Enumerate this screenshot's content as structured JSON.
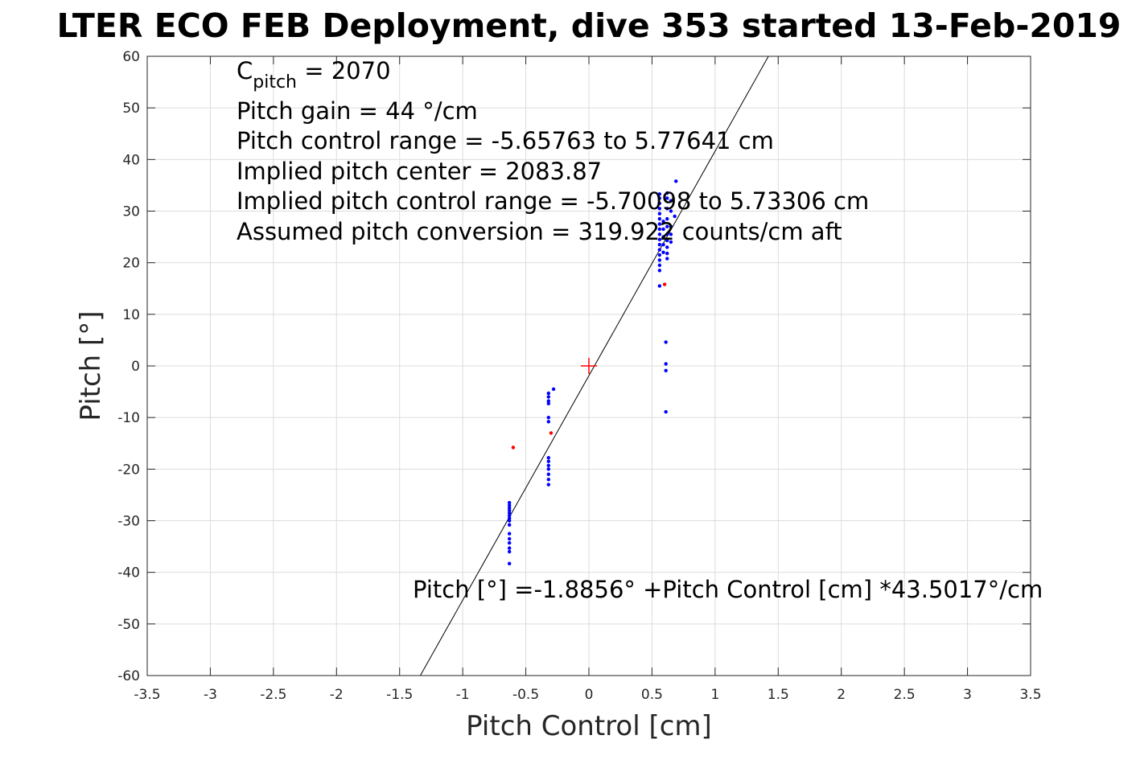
{
  "chart_data": {
    "type": "scatter",
    "title": "LTER ECO FEB Deployment, dive 353 started 13-Feb-2019",
    "xlabel": "Pitch Control [cm]",
    "ylabel": "Pitch [°]",
    "xlim": [
      -3.5,
      3.5
    ],
    "ylim": [
      -60,
      60
    ],
    "x_ticks": [
      -3.5,
      -3,
      -2.5,
      -2,
      -1.5,
      -1,
      -0.5,
      0,
      0.5,
      1,
      1.5,
      2,
      2.5,
      3,
      3.5
    ],
    "x_tick_labels": [
      "-3.5",
      "-3",
      "-2.5",
      "-2",
      "-1.5",
      "-1",
      "-0.5",
      "0",
      "0.5",
      "1",
      "1.5",
      "2",
      "2.5",
      "3",
      "3.5"
    ],
    "y_ticks": [
      -60,
      -50,
      -40,
      -30,
      -20,
      -10,
      0,
      10,
      20,
      30,
      40,
      50,
      60
    ],
    "y_tick_labels": [
      "-60",
      "-50",
      "-40",
      "-30",
      "-20",
      "-10",
      "0",
      "10",
      "20",
      "30",
      "40",
      "50",
      "60"
    ],
    "grid": true,
    "annotations": {
      "c_pitch_label": "C",
      "c_pitch_sub": "pitch",
      "c_pitch_value": " = 2070",
      "lines": [
        "Pitch gain = 44 °/cm",
        "Pitch control range = -5.65763 to 5.77641 cm",
        "Implied pitch center = 2083.87",
        "Implied pitch control range = -5.70098 to 5.73306 cm",
        "Assumed pitch conversion = 319.922 counts/cm aft"
      ],
      "fit_equation": "Pitch [°] =-1.8856° +Pitch Control [cm] *43.5017°/cm"
    },
    "fit_line": {
      "intercept": -1.8856,
      "slope": 43.5017,
      "color": "#000000"
    },
    "center_marker": {
      "x": 0,
      "y": 0,
      "color": "#ff0000"
    },
    "series": [
      {
        "color": "#0000ff",
        "points": [
          [
            -0.63,
            -26.5
          ],
          [
            -0.63,
            -27.0
          ],
          [
            -0.63,
            -27.5
          ],
          [
            -0.63,
            -28.0
          ],
          [
            -0.63,
            -28.5
          ],
          [
            -0.63,
            -29.0
          ],
          [
            -0.63,
            -29.5
          ],
          [
            -0.63,
            -30.0
          ],
          [
            -0.63,
            -30.8
          ],
          [
            -0.63,
            -32.5
          ],
          [
            -0.63,
            -33.5
          ],
          [
            -0.63,
            -34.3
          ],
          [
            -0.63,
            -35.3
          ],
          [
            -0.63,
            -36.0
          ],
          [
            -0.63,
            -38.3
          ],
          [
            -0.32,
            -5.3
          ],
          [
            -0.32,
            -6.0
          ],
          [
            -0.32,
            -6.8
          ],
          [
            -0.32,
            -7.3
          ],
          [
            -0.32,
            -10.0
          ],
          [
            -0.32,
            -10.8
          ],
          [
            -0.28,
            -4.5
          ],
          [
            -0.32,
            -17.8
          ],
          [
            -0.32,
            -18.5
          ],
          [
            -0.32,
            -19.3
          ],
          [
            -0.32,
            -20.0
          ],
          [
            -0.32,
            -21.0
          ],
          [
            -0.32,
            -22.0
          ],
          [
            -0.32,
            -23.0
          ],
          [
            0.56,
            15.5
          ],
          [
            0.56,
            18.5
          ],
          [
            0.56,
            19.5
          ],
          [
            0.56,
            20.5
          ],
          [
            0.56,
            21.5
          ],
          [
            0.56,
            22.5
          ],
          [
            0.56,
            23.5
          ],
          [
            0.56,
            24.5
          ],
          [
            0.56,
            25.5
          ],
          [
            0.56,
            26.5
          ],
          [
            0.56,
            27.5
          ],
          [
            0.56,
            28.5
          ],
          [
            0.56,
            29.5
          ],
          [
            0.56,
            30.5
          ],
          [
            0.56,
            31.5
          ],
          [
            0.56,
            32.5
          ],
          [
            0.56,
            33.3
          ],
          [
            0.59,
            22.0
          ],
          [
            0.59,
            23.5
          ],
          [
            0.59,
            25.0
          ],
          [
            0.59,
            26.5
          ],
          [
            0.59,
            28.0
          ],
          [
            0.62,
            20.8
          ],
          [
            0.62,
            21.8
          ],
          [
            0.62,
            23.0
          ],
          [
            0.62,
            24.3
          ],
          [
            0.62,
            25.5
          ],
          [
            0.62,
            27.0
          ],
          [
            0.62,
            28.5
          ],
          [
            0.62,
            30.5
          ],
          [
            0.62,
            32.5
          ],
          [
            0.62,
            33.5
          ],
          [
            0.65,
            24.0
          ],
          [
            0.65,
            25.5
          ],
          [
            0.65,
            27.0
          ],
          [
            0.65,
            30.0
          ],
          [
            0.65,
            32.0
          ],
          [
            0.68,
            29.0
          ],
          [
            0.69,
            35.8
          ],
          [
            0.61,
            4.6
          ],
          [
            0.61,
            0.4
          ],
          [
            0.61,
            -0.9
          ],
          [
            0.61,
            -8.9
          ]
        ]
      },
      {
        "color": "#ff0000",
        "points": [
          [
            -0.6,
            -15.8
          ],
          [
            -0.3,
            -13.0
          ],
          [
            0.6,
            15.8
          ]
        ]
      }
    ]
  }
}
